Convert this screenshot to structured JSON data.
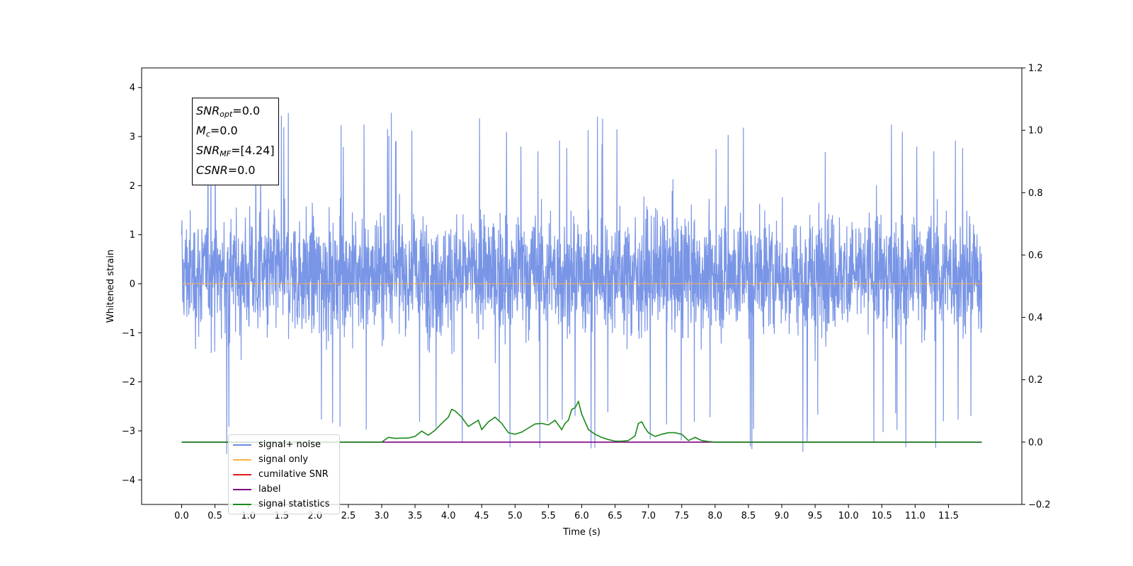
{
  "chart_data": {
    "type": "line",
    "title": "",
    "xlabel": "Time (s)",
    "ylabel": "Whitened strain",
    "xlim": [
      -0.6,
      12.6
    ],
    "ylim": [
      -4.5,
      4.4
    ],
    "y2lim": [
      -0.2,
      1.2
    ],
    "xticks": [
      "0.0",
      "0.5",
      "1.0",
      "1.5",
      "2.0",
      "2.5",
      "3.0",
      "3.5",
      "4.0",
      "4.5",
      "5.0",
      "5.5",
      "6.0",
      "6.5",
      "7.0",
      "7.5",
      "8.0",
      "8.5",
      "9.0",
      "9.5",
      "10.0",
      "10.5",
      "11.0",
      "11.5"
    ],
    "yticks": [
      "4",
      "3",
      "2",
      "1",
      "0",
      "−1",
      "−2",
      "−3",
      "−4"
    ],
    "y2ticks": [
      "1.2",
      "1.0",
      "0.8",
      "0.6",
      "0.4",
      "0.2",
      "0.0",
      "−0.2"
    ],
    "grid": false,
    "legend_position": "lower-left",
    "series": [
      {
        "name": "signal+ noise",
        "color": "#6a89e3",
        "axis": "left",
        "description_values": {
          "x_range": [
            0.0,
            12.0
          ],
          "typical_range": [
            -2.0,
            2.4
          ],
          "extremes": [
            -4.1,
            4.0
          ]
        }
      },
      {
        "name": "signal only",
        "color": "#ffb347",
        "axis": "left",
        "x": [
          0.0,
          12.0
        ],
        "values": [
          0.0,
          0.0
        ]
      },
      {
        "name": "cumilative SNR",
        "color": "#e31a1c",
        "axis": "right",
        "x": [],
        "values": []
      },
      {
        "name": "label",
        "color": "#800080",
        "axis": "right",
        "x": [
          0.0,
          12.0
        ],
        "values": [
          0.0,
          0.0
        ]
      },
      {
        "name": "signal statistics",
        "color": "#1a8a1a",
        "axis": "right",
        "x": [
          0.0,
          0.5,
          1.0,
          1.5,
          2.0,
          2.5,
          3.0,
          3.1,
          3.2,
          3.4,
          3.5,
          3.6,
          3.7,
          3.8,
          3.9,
          4.0,
          4.05,
          4.1,
          4.2,
          4.3,
          4.45,
          4.5,
          4.6,
          4.7,
          4.8,
          4.9,
          5.0,
          5.1,
          5.2,
          5.3,
          5.4,
          5.5,
          5.6,
          5.7,
          5.75,
          5.8,
          5.85,
          5.9,
          5.95,
          6.0,
          6.1,
          6.2,
          6.3,
          6.4,
          6.5,
          6.6,
          6.7,
          6.8,
          6.85,
          6.9,
          6.95,
          7.0,
          7.1,
          7.2,
          7.3,
          7.4,
          7.5,
          7.6,
          7.7,
          7.75,
          7.8,
          7.9,
          8.0,
          8.5,
          9.0,
          9.5,
          10.0,
          10.5,
          11.0,
          11.5,
          12.0
        ],
        "values": [
          0.0,
          0.0,
          0.0,
          0.0,
          0.0,
          0.0,
          0.0,
          0.015,
          0.012,
          0.013,
          0.018,
          0.035,
          0.022,
          0.038,
          0.06,
          0.08,
          0.105,
          0.1,
          0.08,
          0.05,
          0.07,
          0.04,
          0.065,
          0.08,
          0.06,
          0.03,
          0.025,
          0.032,
          0.045,
          0.058,
          0.06,
          0.055,
          0.07,
          0.04,
          0.06,
          0.07,
          0.105,
          0.11,
          0.13,
          0.09,
          0.04,
          0.025,
          0.015,
          0.008,
          0.003,
          0.003,
          0.005,
          0.02,
          0.06,
          0.065,
          0.045,
          0.03,
          0.018,
          0.025,
          0.03,
          0.03,
          0.025,
          0.005,
          0.015,
          0.01,
          0.005,
          0.002,
          0.0,
          0.0,
          0.0,
          0.0,
          0.0,
          0.0,
          0.0,
          0.0,
          0.0
        ]
      }
    ]
  },
  "info_box": {
    "rows": [
      {
        "var": "SNR",
        "sub": "opt",
        "rest": "=0.0"
      },
      {
        "var": "M",
        "sub": "c",
        "rest": "=0.0"
      },
      {
        "var": "SNR",
        "sub": "MF",
        "rest": "=[4.24]"
      },
      {
        "var": "CSNR",
        "sub": "",
        "rest": "=0.0"
      }
    ]
  }
}
